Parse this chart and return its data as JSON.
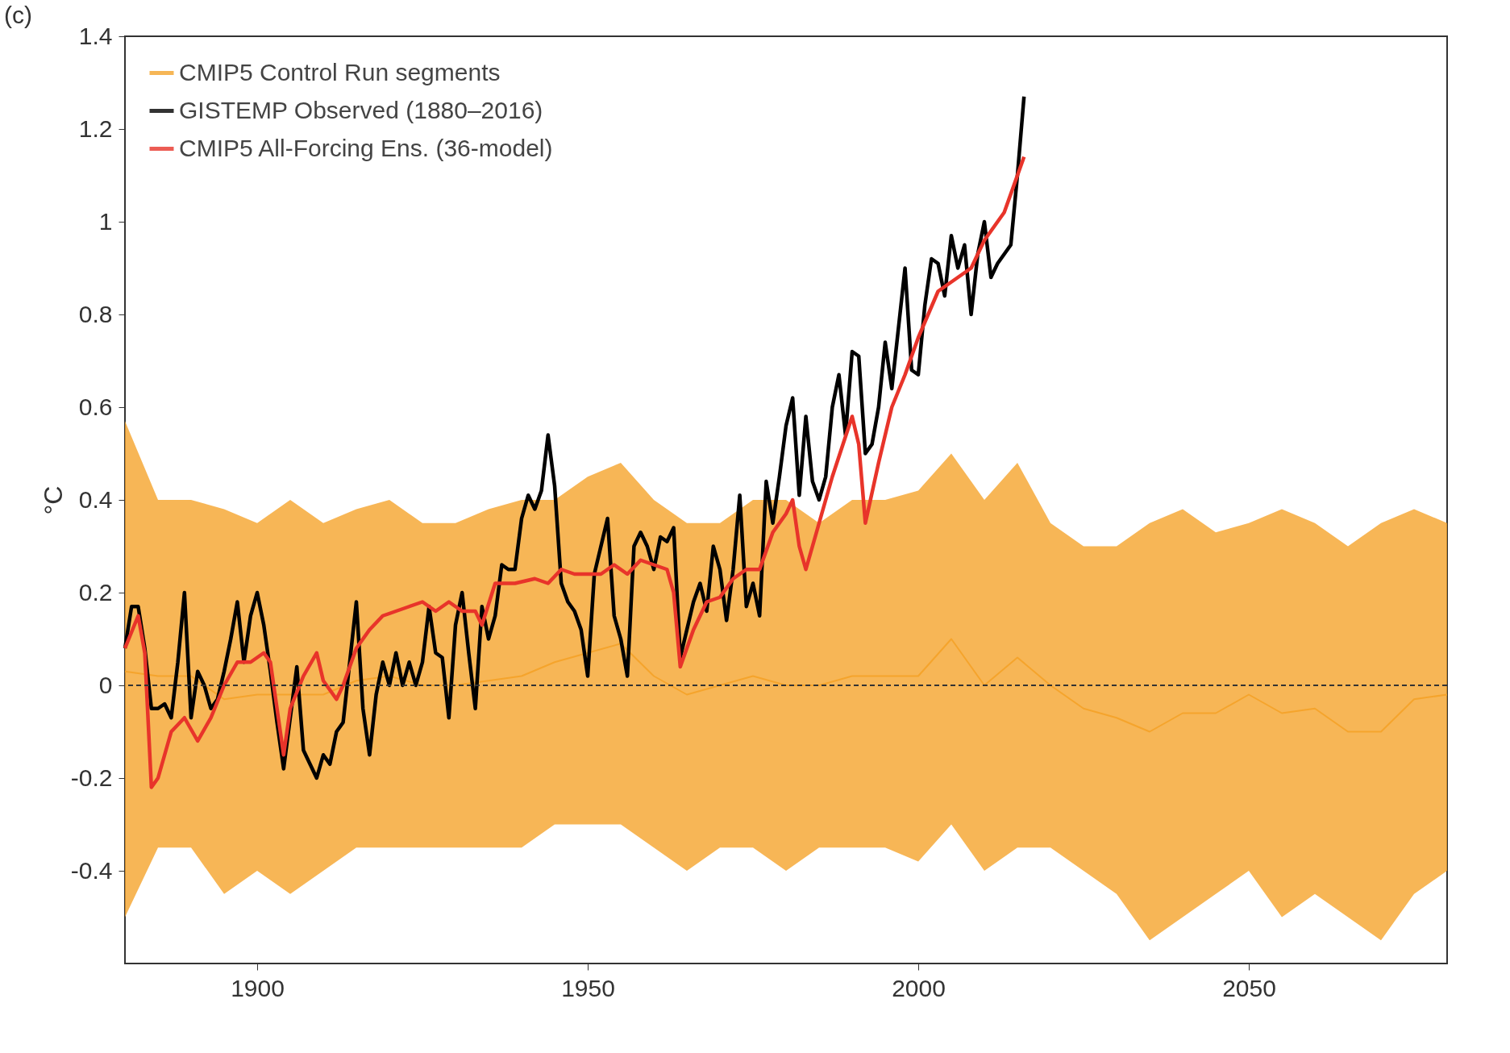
{
  "chart_data": {
    "type": "line",
    "annotations": [
      "(c)"
    ],
    "ylabel": "°C",
    "xlim": [
      1880,
      2080
    ],
    "ylim": [
      -0.6,
      1.4
    ],
    "xticks": [
      1900,
      1950,
      2000,
      2050
    ],
    "yticks": [
      -0.4,
      -0.2,
      0,
      0.2,
      0.4,
      0.6,
      0.8,
      1,
      1.2,
      1.4
    ],
    "legend": "top left",
    "grid": false,
    "ref_lines": [
      {
        "axis": "y",
        "value": 0,
        "line_style": "dashed",
        "color": "#333333"
      }
    ],
    "series": [
      {
        "name": "CMIP5 Control Run segments",
        "color": "#f5a42c",
        "x": [
          1880,
          1885,
          1890,
          1895,
          1900,
          1905,
          1910,
          1915,
          1920,
          1925,
          1930,
          1935,
          1940,
          1945,
          1950,
          1955,
          1960,
          1965,
          1970,
          1975,
          1980,
          1985,
          1990,
          1995,
          2000,
          2005,
          2010,
          2015,
          2020,
          2025,
          2030,
          2035,
          2040,
          2045,
          2050,
          2055,
          2060,
          2065,
          2070,
          2075,
          2080
        ],
        "values": [
          0.03,
          0.02,
          0.02,
          -0.03,
          -0.02,
          -0.02,
          -0.02,
          0.01,
          0.02,
          0,
          0,
          0.01,
          0.02,
          0.05,
          0.07,
          0.09,
          0.02,
          -0.02,
          0,
          0.02,
          0,
          0,
          0.02,
          0.02,
          0.02,
          0.1,
          0,
          0.06,
          0,
          -0.05,
          -0.07,
          -0.1,
          -0.06,
          -0.06,
          -0.02,
          -0.06,
          -0.05,
          -0.1,
          -0.1,
          -0.03,
          -0.02
        ],
        "upper": [
          0.57,
          0.4,
          0.4,
          0.38,
          0.35,
          0.4,
          0.35,
          0.38,
          0.4,
          0.35,
          0.35,
          0.38,
          0.4,
          0.4,
          0.45,
          0.48,
          0.4,
          0.35,
          0.35,
          0.4,
          0.4,
          0.35,
          0.4,
          0.4,
          0.42,
          0.5,
          0.4,
          0.48,
          0.35,
          0.3,
          0.3,
          0.35,
          0.38,
          0.33,
          0.35,
          0.38,
          0.35,
          0.3,
          0.35,
          0.38,
          0.35
        ],
        "lower": [
          -0.5,
          -0.35,
          -0.35,
          -0.45,
          -0.4,
          -0.45,
          -0.4,
          -0.35,
          -0.35,
          -0.35,
          -0.35,
          -0.35,
          -0.35,
          -0.3,
          -0.3,
          -0.3,
          -0.35,
          -0.4,
          -0.35,
          -0.35,
          -0.4,
          -0.35,
          -0.35,
          -0.35,
          -0.38,
          -0.3,
          -0.4,
          -0.35,
          -0.35,
          -0.4,
          -0.45,
          -0.55,
          -0.5,
          -0.45,
          -0.4,
          -0.5,
          -0.45,
          -0.5,
          -0.55,
          -0.45,
          -0.4
        ]
      },
      {
        "name": "GISTEMP Observed (1880–2016)",
        "color": "#000000",
        "x": [
          1880,
          1881,
          1882,
          1883,
          1884,
          1885,
          1886,
          1887,
          1888,
          1889,
          1890,
          1891,
          1892,
          1893,
          1894,
          1895,
          1896,
          1897,
          1898,
          1899,
          1900,
          1901,
          1902,
          1903,
          1904,
          1905,
          1906,
          1907,
          1908,
          1909,
          1910,
          1911,
          1912,
          1913,
          1914,
          1915,
          1916,
          1917,
          1918,
          1919,
          1920,
          1921,
          1922,
          1923,
          1924,
          1925,
          1926,
          1927,
          1928,
          1929,
          1930,
          1931,
          1932,
          1933,
          1934,
          1935,
          1936,
          1937,
          1938,
          1939,
          1940,
          1941,
          1942,
          1943,
          1944,
          1945,
          1946,
          1947,
          1948,
          1949,
          1950,
          1951,
          1952,
          1953,
          1954,
          1955,
          1956,
          1957,
          1958,
          1959,
          1960,
          1961,
          1962,
          1963,
          1964,
          1965,
          1966,
          1967,
          1968,
          1969,
          1970,
          1971,
          1972,
          1973,
          1974,
          1975,
          1976,
          1977,
          1978,
          1979,
          1980,
          1981,
          1982,
          1983,
          1984,
          1985,
          1986,
          1987,
          1988,
          1989,
          1990,
          1991,
          1992,
          1993,
          1994,
          1995,
          1996,
          1997,
          1998,
          1999,
          2000,
          2001,
          2002,
          2003,
          2004,
          2005,
          2006,
          2007,
          2008,
          2009,
          2010,
          2011,
          2012,
          2013,
          2014,
          2015,
          2016
        ],
        "values": [
          0.08,
          0.17,
          0.17,
          0.08,
          -0.05,
          -0.05,
          -0.04,
          -0.07,
          0.05,
          0.2,
          -0.07,
          0.03,
          0.0,
          -0.05,
          -0.03,
          0.03,
          0.1,
          0.18,
          0.05,
          0.15,
          0.2,
          0.13,
          0.03,
          -0.08,
          -0.18,
          -0.07,
          0.04,
          -0.14,
          -0.17,
          -0.2,
          -0.15,
          -0.17,
          -0.1,
          -0.08,
          0.05,
          0.18,
          -0.05,
          -0.15,
          -0.02,
          0.05,
          0.0,
          0.07,
          0.0,
          0.05,
          0.0,
          0.05,
          0.17,
          0.07,
          0.06,
          -0.07,
          0.13,
          0.2,
          0.07,
          -0.05,
          0.17,
          0.1,
          0.15,
          0.26,
          0.25,
          0.25,
          0.36,
          0.41,
          0.38,
          0.42,
          0.54,
          0.43,
          0.22,
          0.18,
          0.16,
          0.12,
          0.02,
          0.24,
          0.3,
          0.36,
          0.15,
          0.1,
          0.02,
          0.3,
          0.33,
          0.3,
          0.25,
          0.32,
          0.31,
          0.34,
          0.06,
          0.12,
          0.18,
          0.22,
          0.16,
          0.3,
          0.25,
          0.14,
          0.25,
          0.41,
          0.17,
          0.22,
          0.15,
          0.44,
          0.35,
          0.45,
          0.56,
          0.62,
          0.41,
          0.58,
          0.44,
          0.4,
          0.45,
          0.6,
          0.67,
          0.54,
          0.72,
          0.71,
          0.5,
          0.52,
          0.6,
          0.74,
          0.64,
          0.77,
          0.9,
          0.68,
          0.67,
          0.82,
          0.92,
          0.91,
          0.84,
          0.97,
          0.9,
          0.95,
          0.8,
          0.93,
          1.0,
          0.88,
          0.91,
          0.93,
          0.95,
          1.1,
          1.27
        ]
      },
      {
        "name": "CMIP5 All-Forcing Ens. (36-model)",
        "color": "#e8342a",
        "x": [
          1880,
          1882,
          1883,
          1884,
          1885,
          1887,
          1889,
          1891,
          1893,
          1895,
          1897,
          1899,
          1901,
          1902,
          1904,
          1905,
          1907,
          1909,
          1910,
          1912,
          1913,
          1915,
          1917,
          1919,
          1921,
          1923,
          1925,
          1927,
          1929,
          1931,
          1933,
          1934,
          1936,
          1939,
          1942,
          1944,
          1946,
          1948,
          1950,
          1952,
          1954,
          1956,
          1958,
          1960,
          1962,
          1963,
          1964,
          1966,
          1968,
          1970,
          1972,
          1974,
          1976,
          1978,
          1980,
          1981,
          1982,
          1983,
          1985,
          1987,
          1990,
          1991,
          1992,
          1994,
          1996,
          1998,
          2000,
          2003,
          2006,
          2008,
          2010,
          2013,
          2016
        ],
        "values": [
          0.08,
          0.15,
          0.07,
          -0.22,
          -0.2,
          -0.1,
          -0.07,
          -0.12,
          -0.07,
          0.0,
          0.05,
          0.05,
          0.07,
          0.05,
          -0.15,
          -0.05,
          0.02,
          0.07,
          0.01,
          -0.03,
          0.0,
          0.08,
          0.12,
          0.15,
          0.16,
          0.17,
          0.18,
          0.16,
          0.18,
          0.16,
          0.16,
          0.13,
          0.22,
          0.22,
          0.23,
          0.22,
          0.25,
          0.24,
          0.24,
          0.24,
          0.26,
          0.24,
          0.27,
          0.26,
          0.25,
          0.2,
          0.04,
          0.12,
          0.18,
          0.19,
          0.23,
          0.25,
          0.25,
          0.33,
          0.37,
          0.4,
          0.3,
          0.25,
          0.35,
          0.45,
          0.58,
          0.52,
          0.35,
          0.48,
          0.6,
          0.67,
          0.75,
          0.85,
          0.88,
          0.9,
          0.96,
          1.02,
          1.14
        ]
      }
    ]
  }
}
